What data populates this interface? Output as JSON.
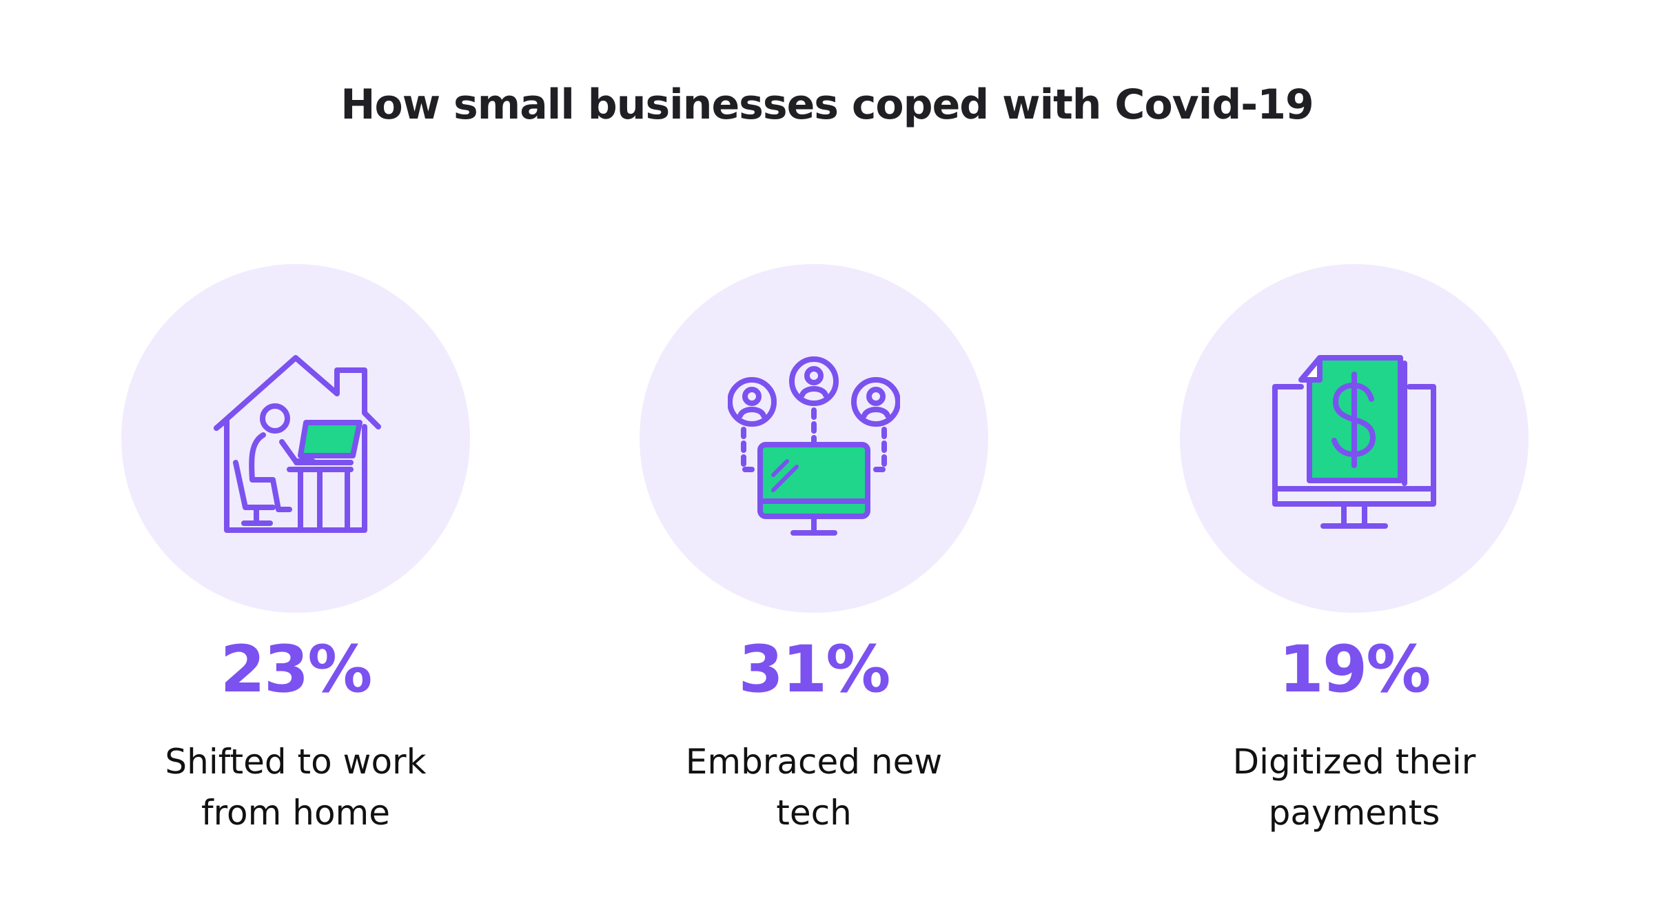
{
  "title": "How small businesses coped with Covid-19",
  "colors": {
    "accent": "#7b52ef",
    "highlight": "#1fd68a",
    "circle": "#f0ecfd",
    "text": "#111111"
  },
  "stats": [
    {
      "value": "23%",
      "label": "Shifted to work from home",
      "icon": "work-from-home-icon"
    },
    {
      "value": "31%",
      "label": "Embraced new tech",
      "icon": "connected-monitor-icon"
    },
    {
      "value": "19%",
      "label": "Digitized their payments",
      "icon": "digital-payment-icon"
    }
  ],
  "chart_data": {
    "type": "bar",
    "title": "How small businesses coped with Covid-19",
    "categories": [
      "Shifted to work from home",
      "Embraced new tech",
      "Digitized their payments"
    ],
    "values": [
      23,
      31,
      19
    ],
    "unit": "%",
    "xlabel": "",
    "ylabel": ""
  }
}
